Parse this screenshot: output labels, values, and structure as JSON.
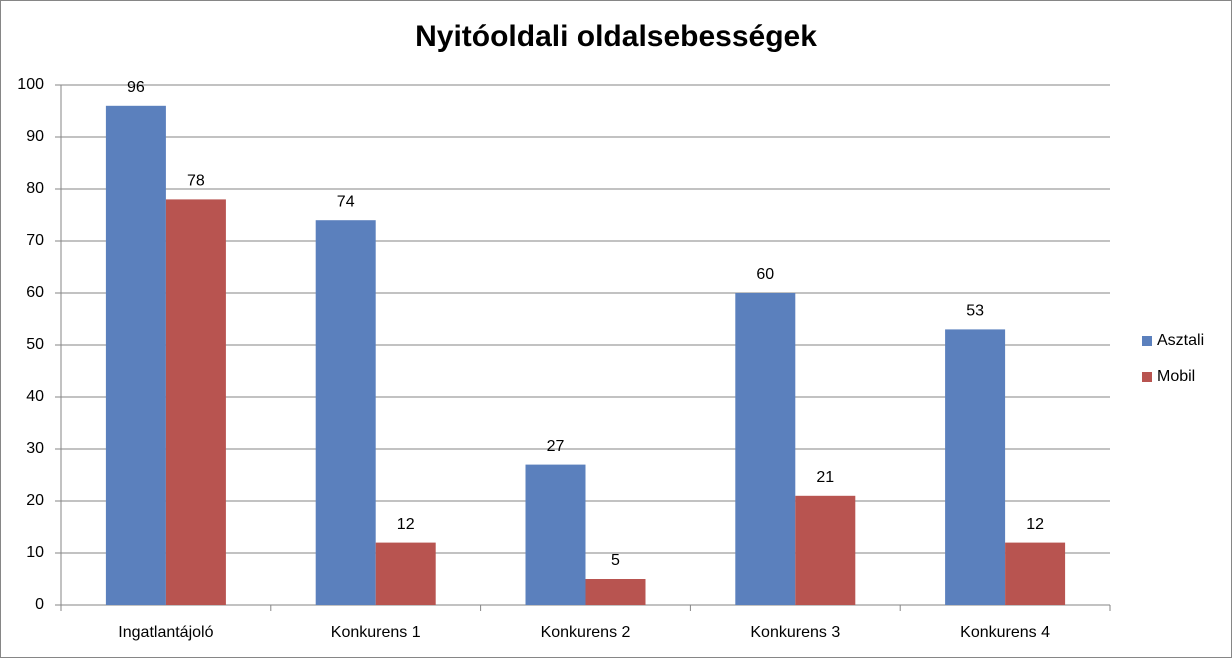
{
  "chart_data": {
    "type": "bar",
    "title": "Nyitóoldali oldalsebességek",
    "categories": [
      "Ingatlantájoló",
      "Konkurens 1",
      "Konkurens 2",
      "Konkurens 3",
      "Konkurens 4"
    ],
    "series": [
      {
        "name": "Asztali",
        "color": "#5b80bd",
        "values": [
          96,
          74,
          27,
          60,
          53
        ]
      },
      {
        "name": "Mobil",
        "color": "#b85450",
        "values": [
          78,
          12,
          5,
          21,
          12
        ]
      }
    ],
    "ylim": [
      0,
      100
    ],
    "yticks": [
      0,
      10,
      20,
      30,
      40,
      50,
      60,
      70,
      80,
      90,
      100
    ],
    "grid": true,
    "legend": "right"
  }
}
